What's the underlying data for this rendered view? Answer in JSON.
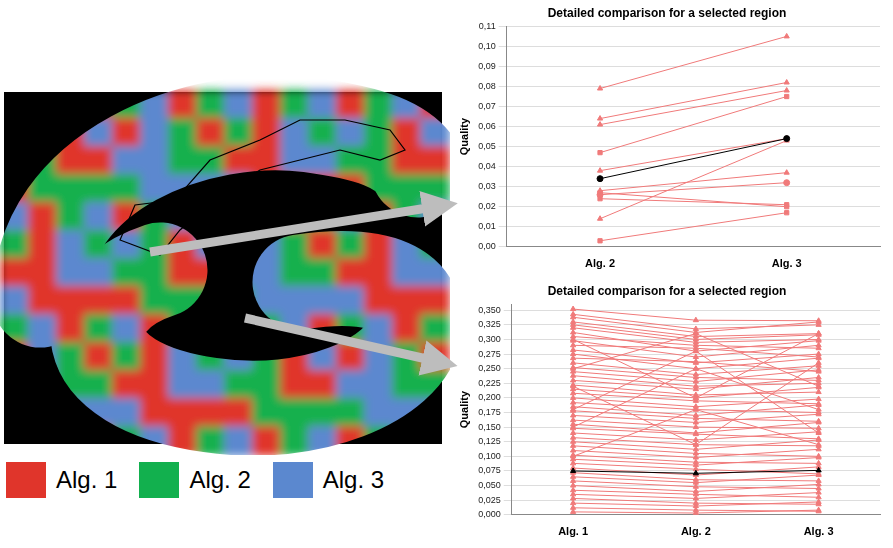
{
  "surface_legend": [
    {
      "name": "Alg. 1",
      "color": "#e0352b"
    },
    {
      "name": "Alg. 2",
      "color": "#12b04e"
    },
    {
      "name": "Alg. 3",
      "color": "#5b88cf"
    }
  ],
  "chart_data": [
    {
      "type": "line",
      "title": "Detailed comparison for a selected region",
      "y_label": "Quality",
      "categories": [
        "Alg. 2",
        "Alg. 3"
      ],
      "grid": true,
      "color": "#f07a7a",
      "ylim": [
        0,
        0.11
      ],
      "yticks": [
        {
          "value": 0,
          "label": "0,00"
        },
        {
          "value": 0.01,
          "label": "0,01"
        },
        {
          "value": 0.02,
          "label": "0,02"
        },
        {
          "value": 0.03,
          "label": "0,03"
        },
        {
          "value": 0.04,
          "label": "0,04"
        },
        {
          "value": 0.05,
          "label": "0,05"
        },
        {
          "value": 0.06,
          "label": "0,06"
        },
        {
          "value": 0.07,
          "label": "0,07"
        },
        {
          "value": 0.08,
          "label": "0,08"
        },
        {
          "value": 0.09,
          "label": "0,09"
        },
        {
          "value": 0.1,
          "label": "0,10"
        },
        {
          "value": 0.11,
          "label": "0,11"
        }
      ],
      "series": [
        {
          "marker": "triangle",
          "values": [
            0.079,
            0.105
          ]
        },
        {
          "marker": "triangle",
          "values": [
            0.064,
            0.082
          ]
        },
        {
          "marker": "triangle",
          "values": [
            0.061,
            0.078
          ]
        },
        {
          "marker": "square",
          "values": [
            0.047,
            0.075
          ]
        },
        {
          "marker": "triangle",
          "values": [
            0.038,
            0.054
          ]
        },
        {
          "marker": "triangle",
          "values": [
            0.028,
            0.037
          ]
        },
        {
          "marker": "circle",
          "values": [
            0.026,
            0.032
          ]
        },
        {
          "marker": "square",
          "values": [
            0.024,
            0.021
          ]
        },
        {
          "marker": "square",
          "values": [
            0.027,
            0.02
          ]
        },
        {
          "marker": "triangle",
          "values": [
            0.014,
            0.053
          ]
        },
        {
          "marker": "square",
          "values": [
            0.003,
            0.017
          ]
        },
        {
          "marker": "circle",
          "color": "#000000",
          "values": [
            0.034,
            0.054
          ]
        }
      ]
    },
    {
      "type": "line",
      "title": "Detailed comparison for a selected region",
      "y_label": "Quality",
      "categories": [
        "Alg. 1",
        "Alg. 2",
        "Alg. 3"
      ],
      "grid": true,
      "color": "#f07a7a",
      "marker": "triangle",
      "ylim": [
        0,
        0.36
      ],
      "yticks": [
        {
          "value": 0,
          "label": "0,000"
        },
        {
          "value": 0.025,
          "label": "0,025"
        },
        {
          "value": 0.05,
          "label": "0,050"
        },
        {
          "value": 0.075,
          "label": "0,075"
        },
        {
          "value": 0.1,
          "label": "0,100"
        },
        {
          "value": 0.125,
          "label": "0,125"
        },
        {
          "value": 0.15,
          "label": "0,150"
        },
        {
          "value": 0.175,
          "label": "0,175"
        },
        {
          "value": 0.2,
          "label": "0,200"
        },
        {
          "value": 0.225,
          "label": "0,225"
        },
        {
          "value": 0.25,
          "label": "0,250"
        },
        {
          "value": 0.275,
          "label": "0,275"
        },
        {
          "value": 0.3,
          "label": "0,300"
        },
        {
          "value": 0.325,
          "label": "0,325"
        },
        {
          "value": 0.35,
          "label": "0,350"
        }
      ],
      "series": [
        {
          "values": [
            0.352,
            0.333,
            0.332
          ]
        },
        {
          "values": [
            0.343,
            0.318,
            0.325
          ]
        },
        {
          "values": [
            0.338,
            0.312,
            0.33
          ]
        },
        {
          "values": [
            0.33,
            0.305,
            0.31
          ]
        },
        {
          "values": [
            0.325,
            0.3,
            0.308
          ]
        },
        {
          "values": [
            0.32,
            0.295,
            0.3
          ]
        },
        {
          "values": [
            0.312,
            0.28,
            0.298
          ]
        },
        {
          "values": [
            0.305,
            0.29,
            0.285
          ]
        },
        {
          "values": [
            0.298,
            0.27,
            0.29
          ]
        },
        {
          "values": [
            0.29,
            0.285,
            0.27
          ]
        },
        {
          "values": [
            0.282,
            0.26,
            0.275
          ]
        },
        {
          "values": [
            0.275,
            0.25,
            0.268
          ]
        },
        {
          "values": [
            0.268,
            0.262,
            0.245
          ]
        },
        {
          "values": [
            0.26,
            0.24,
            0.255
          ]
        },
        {
          "values": [
            0.252,
            0.235,
            0.23
          ]
        },
        {
          "values": [
            0.245,
            0.228,
            0.248
          ]
        },
        {
          "values": [
            0.238,
            0.22,
            0.225
          ]
        },
        {
          "values": [
            0.23,
            0.215,
            0.235
          ]
        },
        {
          "values": [
            0.222,
            0.205,
            0.21
          ]
        },
        {
          "values": [
            0.215,
            0.2,
            0.218
          ]
        },
        {
          "values": [
            0.208,
            0.195,
            0.19
          ]
        },
        {
          "values": [
            0.2,
            0.185,
            0.198
          ]
        },
        {
          "values": [
            0.192,
            0.18,
            0.175
          ]
        },
        {
          "values": [
            0.185,
            0.17,
            0.188
          ]
        },
        {
          "values": [
            0.178,
            0.165,
            0.16
          ]
        },
        {
          "values": [
            0.17,
            0.158,
            0.172
          ]
        },
        {
          "values": [
            0.162,
            0.15,
            0.148
          ]
        },
        {
          "values": [
            0.155,
            0.14,
            0.158
          ]
        },
        {
          "values": [
            0.148,
            0.138,
            0.13
          ]
        },
        {
          "values": [
            0.14,
            0.128,
            0.142
          ]
        },
        {
          "values": [
            0.132,
            0.12,
            0.118
          ]
        },
        {
          "values": [
            0.125,
            0.112,
            0.128
          ]
        },
        {
          "values": [
            0.118,
            0.105,
            0.1
          ]
        },
        {
          "values": [
            0.11,
            0.098,
            0.112
          ]
        },
        {
          "values": [
            0.102,
            0.09,
            0.088
          ]
        },
        {
          "values": [
            0.095,
            0.085,
            0.098
          ]
        },
        {
          "values": [
            0.088,
            0.078,
            0.07
          ]
        },
        {
          "values": [
            0.08,
            0.068,
            0.082
          ]
        },
        {
          "values": [
            0.072,
            0.06,
            0.058
          ]
        },
        {
          "values": [
            0.065,
            0.055,
            0.068
          ]
        },
        {
          "values": [
            0.058,
            0.048,
            0.045
          ]
        },
        {
          "values": [
            0.05,
            0.04,
            0.052
          ]
        },
        {
          "values": [
            0.042,
            0.035,
            0.03
          ]
        },
        {
          "values": [
            0.035,
            0.028,
            0.038
          ]
        },
        {
          "values": [
            0.028,
            0.02,
            0.018
          ]
        },
        {
          "values": [
            0.02,
            0.015,
            0.022
          ]
        },
        {
          "values": [
            0.012,
            0.008,
            0.006
          ]
        },
        {
          "values": [
            0.005,
            0.003,
            0.008
          ]
        },
        {
          "values": [
            0.3,
            0.2,
            0.31
          ]
        },
        {
          "values": [
            0.25,
            0.31,
            0.22
          ]
        },
        {
          "values": [
            0.15,
            0.25,
            0.18
          ]
        },
        {
          "values": [
            0.1,
            0.18,
            0.12
          ]
        },
        {
          "values": [
            0.22,
            0.12,
            0.26
          ]
        },
        {
          "values": [
            0.18,
            0.28,
            0.14
          ]
        },
        {
          "color": "#000000",
          "values": [
            0.075,
            0.071,
            0.076
          ]
        }
      ]
    }
  ]
}
